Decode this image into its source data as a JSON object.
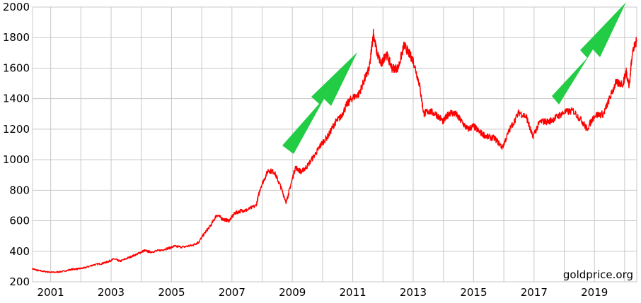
{
  "chart_data": {
    "type": "line",
    "title": "",
    "xlabel": "",
    "ylabel": "",
    "ylim": [
      200,
      2000
    ],
    "xlim": [
      2000.4,
      2020.4
    ],
    "grid": true,
    "y_ticks": [
      200,
      400,
      600,
      800,
      1000,
      1200,
      1400,
      1600,
      1800,
      2000
    ],
    "y_tick_labels": [
      "200",
      "400",
      "600",
      "800",
      "1000",
      "1200",
      "1400",
      "1600",
      "1800",
      "2000"
    ],
    "x_ticks": [
      2001,
      2003,
      2005,
      2007,
      2009,
      2011,
      2013,
      2015,
      2017,
      2019
    ],
    "x_tick_labels": [
      "2001",
      "2003",
      "2005",
      "2007",
      "2009",
      "2011",
      "2013",
      "2015",
      "2017",
      "2019"
    ],
    "x_minor_ticks": [
      2002,
      2004,
      2006,
      2008,
      2010,
      2012,
      2014,
      2016,
      2018,
      2020
    ],
    "line_color": "#ff0000",
    "grid_color": "#c8c8c8",
    "arrow_color": "#22cc44",
    "watermark": "goldprice.org",
    "series": [
      {
        "x": [
          2000.4,
          2000.6,
          2000.9,
          2001.1,
          2001.4,
          2001.7,
          2001.9,
          2002.1,
          2002.4,
          2002.7,
          2002.9,
          2003.1,
          2003.3,
          2003.6,
          2003.9,
          2004.1,
          2004.3,
          2004.6,
          2004.9,
          2005.1,
          2005.4,
          2005.7,
          2005.9,
          2006.1,
          2006.3,
          2006.5,
          2006.7,
          2006.9,
          2007.1,
          2007.3,
          2007.5,
          2007.8,
          2007.95,
          2008.2,
          2008.4,
          2008.6,
          2008.8,
          2008.9,
          2009.1,
          2009.3,
          2009.5,
          2009.8,
          2009.95,
          2010.2,
          2010.4,
          2010.6,
          2010.8,
          2010.95,
          2011.2,
          2011.4,
          2011.55,
          2011.68,
          2011.8,
          2011.95,
          2012.1,
          2012.3,
          2012.5,
          2012.7,
          2012.85,
          2013.0,
          2013.2,
          2013.35,
          2013.5,
          2013.75,
          2014.0,
          2014.2,
          2014.4,
          2014.6,
          2014.8,
          2015.0,
          2015.2,
          2015.45,
          2015.7,
          2015.95,
          2016.2,
          2016.5,
          2016.75,
          2016.95,
          2017.2,
          2017.5,
          2017.75,
          2018.0,
          2018.3,
          2018.6,
          2018.75,
          2019.0,
          2019.3,
          2019.5,
          2019.7,
          2019.95,
          2020.05,
          2020.15,
          2020.25,
          2020.4
        ],
        "values": [
          285,
          273,
          265,
          262,
          268,
          282,
          285,
          290,
          310,
          320,
          332,
          350,
          335,
          360,
          385,
          405,
          395,
          405,
          420,
          432,
          428,
          440,
          460,
          520,
          570,
          640,
          610,
          600,
          650,
          665,
          670,
          700,
          820,
          930,
          920,
          830,
          720,
          800,
          950,
          920,
          960,
          1050,
          1100,
          1160,
          1240,
          1280,
          1360,
          1400,
          1430,
          1530,
          1600,
          1830,
          1700,
          1620,
          1700,
          1600,
          1600,
          1750,
          1700,
          1650,
          1500,
          1300,
          1320,
          1300,
          1250,
          1310,
          1300,
          1250,
          1200,
          1220,
          1180,
          1150,
          1140,
          1080,
          1200,
          1310,
          1280,
          1150,
          1250,
          1250,
          1280,
          1310,
          1320,
          1250,
          1200,
          1290,
          1300,
          1400,
          1500,
          1500,
          1580,
          1480,
          1700,
          1780
        ]
      }
    ]
  }
}
